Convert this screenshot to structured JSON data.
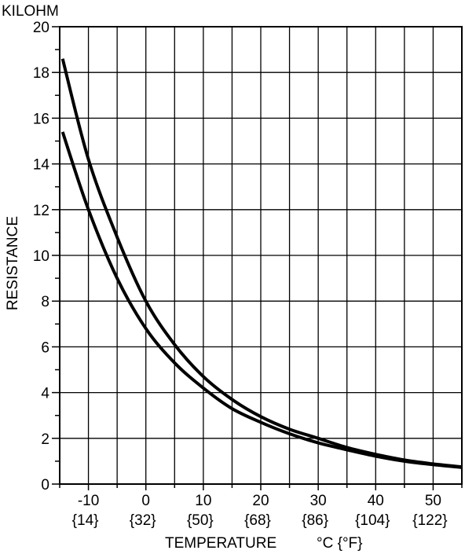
{
  "chart_data": {
    "type": "line",
    "unit_label": "KILOHM",
    "ylabel": "RESISTANCE",
    "xlabel": "TEMPERATURE",
    "xlabel_unit": "°C {°F}",
    "xlim": [
      -15,
      55
    ],
    "ylim": [
      0,
      20
    ],
    "x_ticks": [
      {
        "c": -10,
        "label": "-10",
        "f_label": "{14}"
      },
      {
        "c": 0,
        "label": "0",
        "f_label": "{32}"
      },
      {
        "c": 10,
        "label": "10",
        "f_label": "{50}"
      },
      {
        "c": 20,
        "label": "20",
        "f_label": "{68}"
      },
      {
        "c": 30,
        "label": "30",
        "f_label": "{86}"
      },
      {
        "c": 40,
        "label": "40",
        "f_label": "{104}"
      },
      {
        "c": 50,
        "label": "50",
        "f_label": "{122}"
      }
    ],
    "y_ticks": [
      0,
      2,
      4,
      6,
      8,
      10,
      12,
      14,
      16,
      18,
      20
    ],
    "grid": true,
    "series": [
      {
        "x": [
          -14.5,
          -10,
          -5,
          0,
          5,
          10,
          15,
          20,
          25,
          30,
          35,
          40,
          45,
          50,
          55
        ],
        "values": [
          18.6,
          14.2,
          10.8,
          8.0,
          6.1,
          4.7,
          3.7,
          2.95,
          2.4,
          2.0,
          1.6,
          1.3,
          1.05,
          0.88,
          0.75
        ]
      },
      {
        "x": [
          -14.5,
          -10,
          -5,
          0,
          5,
          10,
          15,
          20,
          25,
          30,
          35,
          40,
          45,
          50,
          55
        ],
        "values": [
          15.4,
          12.0,
          9.0,
          6.8,
          5.3,
          4.2,
          3.3,
          2.7,
          2.2,
          1.8,
          1.5,
          1.22,
          1.0,
          0.85,
          0.73
        ]
      }
    ]
  }
}
